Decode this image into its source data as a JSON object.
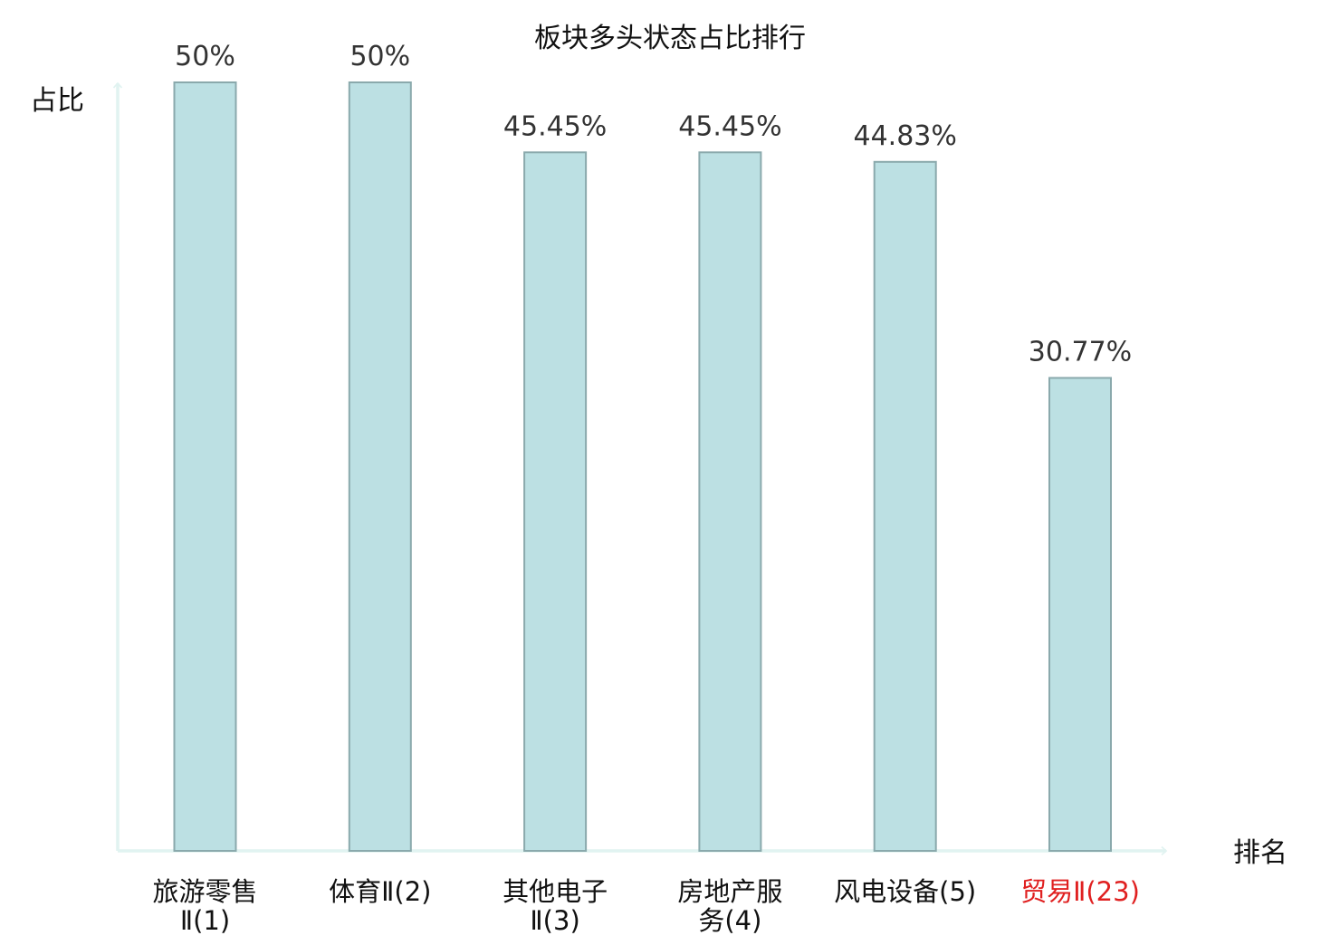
{
  "chart_data": {
    "type": "bar",
    "title": "板块多头状态占比排行",
    "ylabel": "占比",
    "xlabel": "排名",
    "ylim": [
      0,
      50
    ],
    "categories": [
      {
        "lines": [
          "旅游零售",
          "Ⅱ(1)"
        ],
        "highlight": false
      },
      {
        "lines": [
          "体育Ⅱ(2)"
        ],
        "highlight": false
      },
      {
        "lines": [
          "其他电子",
          "Ⅱ(3)"
        ],
        "highlight": false
      },
      {
        "lines": [
          "房地产服",
          "务(4)"
        ],
        "highlight": false
      },
      {
        "lines": [
          "风电设备(5)"
        ],
        "highlight": false
      },
      {
        "lines": [
          "贸易Ⅱ(23)"
        ],
        "highlight": true
      }
    ],
    "values": [
      50,
      50,
      45.45,
      45.45,
      44.83,
      30.77
    ],
    "value_labels": [
      "50%",
      "50%",
      "45.45%",
      "45.45%",
      "44.83%",
      "30.77%"
    ],
    "grid": false,
    "legend": "none",
    "colors": {
      "bar_fill": "#bce0e3",
      "bar_stroke": "#8aa9ac",
      "axis": "#e1f3f1",
      "text": "#333333",
      "highlight_text": "#e02020"
    }
  }
}
